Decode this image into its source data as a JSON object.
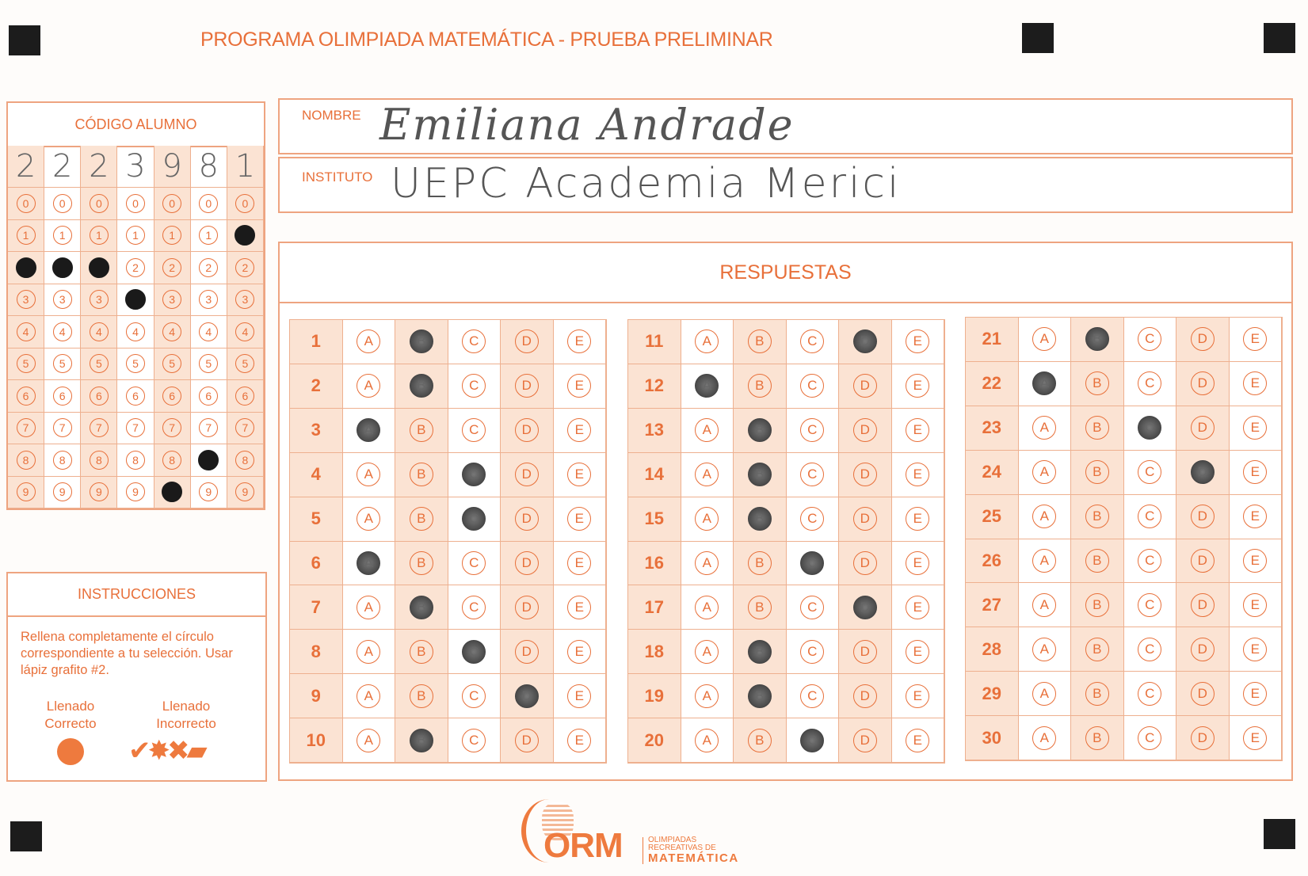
{
  "header": {
    "title": "PROGRAMA OLIMPIADA MATEMÁTICA  - PRUEBA PRELIMINAR"
  },
  "student_code": {
    "title": "CÓDIGO ALUMNO",
    "written_digits": [
      "2",
      "2",
      "2",
      "3",
      "9",
      "8",
      "1"
    ],
    "bubble_digits": [
      "0",
      "1",
      "2",
      "3",
      "4",
      "5",
      "6",
      "7",
      "8",
      "9"
    ],
    "filled": [
      2,
      2,
      2,
      3,
      9,
      8,
      1
    ]
  },
  "nombre": {
    "label": "NOMBRE",
    "value": "Emiliana Andrade"
  },
  "instituto": {
    "label": "INSTITUTO",
    "value": "UEPC Academia Merici"
  },
  "instructions": {
    "title": "INSTRUCCIONES",
    "text": "Rellena completamente el círculo correspondiente a tu selección. Usar lápiz grafito #2.",
    "correct_label": "Llenado Correcto",
    "incorrect_label": "Llenado Incorrecto"
  },
  "responses": {
    "title": "RESPUESTAS",
    "options": [
      "A",
      "B",
      "C",
      "D",
      "E"
    ],
    "answers": [
      {
        "number": "1",
        "selected": "B"
      },
      {
        "number": "2",
        "selected": "B"
      },
      {
        "number": "3",
        "selected": "A"
      },
      {
        "number": "4",
        "selected": "C"
      },
      {
        "number": "5",
        "selected": "C"
      },
      {
        "number": "6",
        "selected": "A"
      },
      {
        "number": "7",
        "selected": "B"
      },
      {
        "number": "8",
        "selected": "C"
      },
      {
        "number": "9",
        "selected": "D"
      },
      {
        "number": "10",
        "selected": "B"
      },
      {
        "number": "11",
        "selected": "D"
      },
      {
        "number": "12",
        "selected": "A"
      },
      {
        "number": "13",
        "selected": "B"
      },
      {
        "number": "14",
        "selected": "B"
      },
      {
        "number": "15",
        "selected": "B"
      },
      {
        "number": "16",
        "selected": "C"
      },
      {
        "number": "17",
        "selected": "D"
      },
      {
        "number": "18",
        "selected": "B"
      },
      {
        "number": "19",
        "selected": "B"
      },
      {
        "number": "20",
        "selected": "C"
      },
      {
        "number": "21",
        "selected": "B"
      },
      {
        "number": "22",
        "selected": "A"
      },
      {
        "number": "23",
        "selected": "C"
      },
      {
        "number": "24",
        "selected": "D"
      },
      {
        "number": "25",
        "selected": null
      },
      {
        "number": "26",
        "selected": null
      },
      {
        "number": "27",
        "selected": null
      },
      {
        "number": "28",
        "selected": null
      },
      {
        "number": "29",
        "selected": null
      },
      {
        "number": "30",
        "selected": null
      }
    ]
  },
  "logo": {
    "mark": "ORM",
    "line1": "OLIMPIADAS",
    "line2": "RECREATIVAS DE",
    "line3": "MATEMÁTICA"
  },
  "colors": {
    "accent": "#e8703a",
    "shade": "#fbe3d3",
    "pencil": "#4a4a4a"
  }
}
